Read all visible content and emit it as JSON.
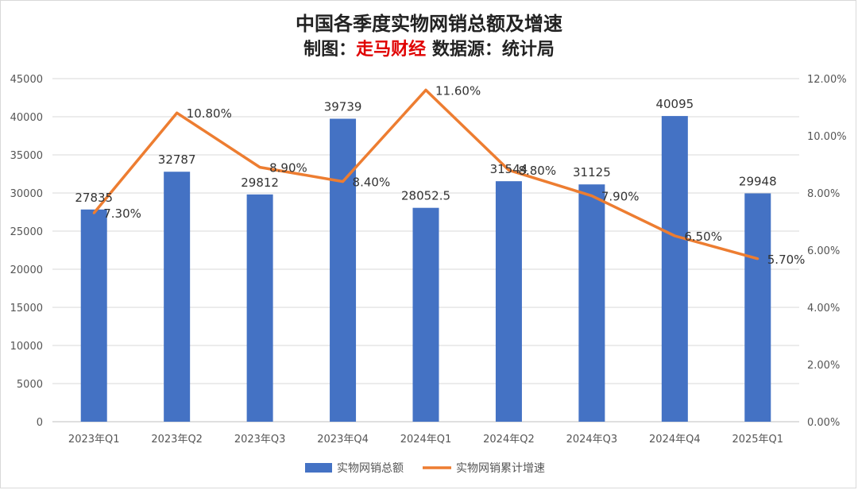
{
  "header": {
    "title": "中国各季度实物网销总额及增速",
    "credit_prefix": "制图：",
    "credit_name": "走马财经",
    "source_text": "数据源：统计局"
  },
  "chart_data": {
    "type": "bar",
    "categories": [
      "2023年Q1",
      "2023年Q2",
      "2023年Q3",
      "2023年Q4",
      "2024年Q1",
      "2024年Q2",
      "2024年Q3",
      "2024年Q4",
      "2025年Q1"
    ],
    "series": [
      {
        "name": "实物网销总额",
        "type": "bar",
        "axis": "left",
        "color": "#4472C4",
        "values": [
          27835,
          32787,
          29812,
          39739,
          28052.5,
          31544,
          31125,
          40095,
          29948
        ],
        "labels": [
          "27835",
          "32787",
          "29812",
          "39739",
          "28052.5",
          "31544",
          "31125",
          "40095",
          "29948"
        ]
      },
      {
        "name": "实物网销累计增速",
        "type": "line",
        "axis": "right",
        "color": "#ED7D31",
        "values": [
          7.3,
          10.8,
          8.9,
          8.4,
          11.6,
          8.8,
          7.9,
          6.5,
          5.7
        ],
        "labels": [
          "7.30%",
          "10.80%",
          "8.90%",
          "8.40%",
          "11.60%",
          "8.80%",
          "7.90%",
          "6.50%",
          "5.70%"
        ]
      }
    ],
    "y_left": {
      "range": [
        0,
        45000
      ],
      "ticks": [
        "0",
        "5000",
        "10000",
        "15000",
        "20000",
        "25000",
        "30000",
        "35000",
        "40000",
        "45000"
      ]
    },
    "y_right": {
      "range": [
        0,
        12
      ],
      "ticks": [
        "0.00%",
        "2.00%",
        "4.00%",
        "6.00%",
        "8.00%",
        "10.00%",
        "12.00%"
      ]
    },
    "grid": true,
    "legend_position": "bottom"
  }
}
